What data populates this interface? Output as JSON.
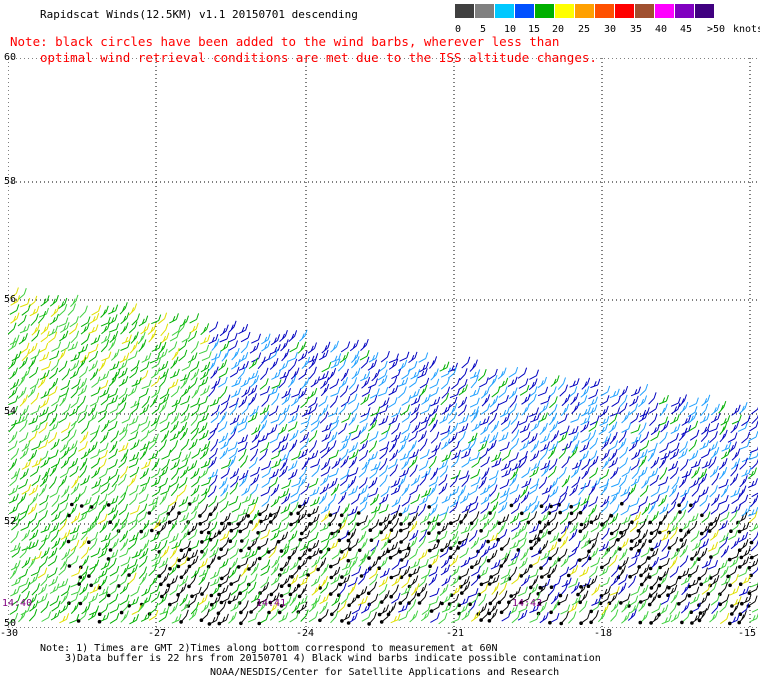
{
  "header": {
    "title": "Rapidscat Winds(12.5KM) v1.1 20150701 descending",
    "note_line1": "Note: black circles have been added to the wind barbs, wherever less than",
    "note_line2": "optimal wind retrieval conditions are met due to the ISS altitude changes."
  },
  "legend": {
    "unit_label": "knots",
    "labels": [
      "0",
      "5",
      "10",
      "15",
      "20",
      "25",
      "30",
      "35",
      "40",
      "45",
      ">50"
    ],
    "colors": [
      "#404040",
      "#808080",
      "#00c8ff",
      "#0050ff",
      "#00b000",
      "#ffff00",
      "#ffa000",
      "#ff5000",
      "#ff0000",
      "#a05030",
      "#ff00ff",
      "#8000c0",
      "#400080"
    ]
  },
  "axes": {
    "lat_labels": [
      "60",
      "58",
      "56",
      "54",
      "52",
      "50"
    ],
    "lon_labels": [
      "-30",
      "-27",
      "-24",
      "-21",
      "-18",
      "-15"
    ]
  },
  "time_labels": [
    "14:40",
    "14:41",
    "14:42"
  ],
  "footer": {
    "line1": "Note: 1) Times are GMT 2)Times along bottom correspond to measurement at 60N",
    "line2": "3)Data buffer is 22 hrs from 20150701 4) Black wind barbs indicate possible contamination",
    "line3": "NOAA/NESDIS/Center for Satellite Applications and Research"
  },
  "colors": {
    "green": "#00b000",
    "light_green": "#40d040",
    "blue": "#0000c0",
    "light_blue": "#20a0ff",
    "yellow": "#e0e000",
    "black": "#000000",
    "time_purple": "#800080"
  }
}
